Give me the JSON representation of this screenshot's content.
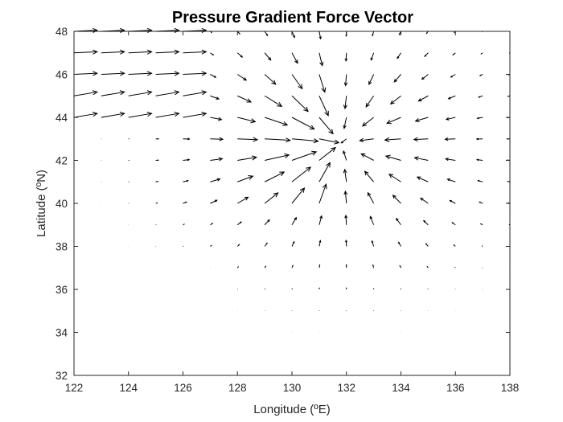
{
  "chart_data": {
    "type": "quiver",
    "title": "Pressure Gradient Force Vector",
    "xlabel": "Longitude (ºE)",
    "ylabel": "Latitude (ºN)",
    "xlim": [
      122,
      138
    ],
    "ylim": [
      32,
      48
    ],
    "xticks": [
      122,
      124,
      126,
      128,
      130,
      132,
      134,
      136,
      138
    ],
    "yticks": [
      32,
      34,
      36,
      38,
      40,
      42,
      44,
      46,
      48
    ],
    "grid": false,
    "color": "#000000",
    "description_of_field": {
      "grid_longitudes": [
        122,
        123,
        124,
        125,
        126,
        127,
        128,
        129,
        130,
        131,
        132,
        133,
        134,
        135,
        136,
        137,
        138
      ],
      "grid_latitudes": [
        32,
        33,
        34,
        35,
        36,
        37,
        38,
        39,
        40,
        41,
        42,
        43,
        44,
        45,
        46,
        47,
        48
      ],
      "convergence_center": [
        131.8,
        42.8
      ],
      "max_vector_length_deg": 1.0
    }
  }
}
